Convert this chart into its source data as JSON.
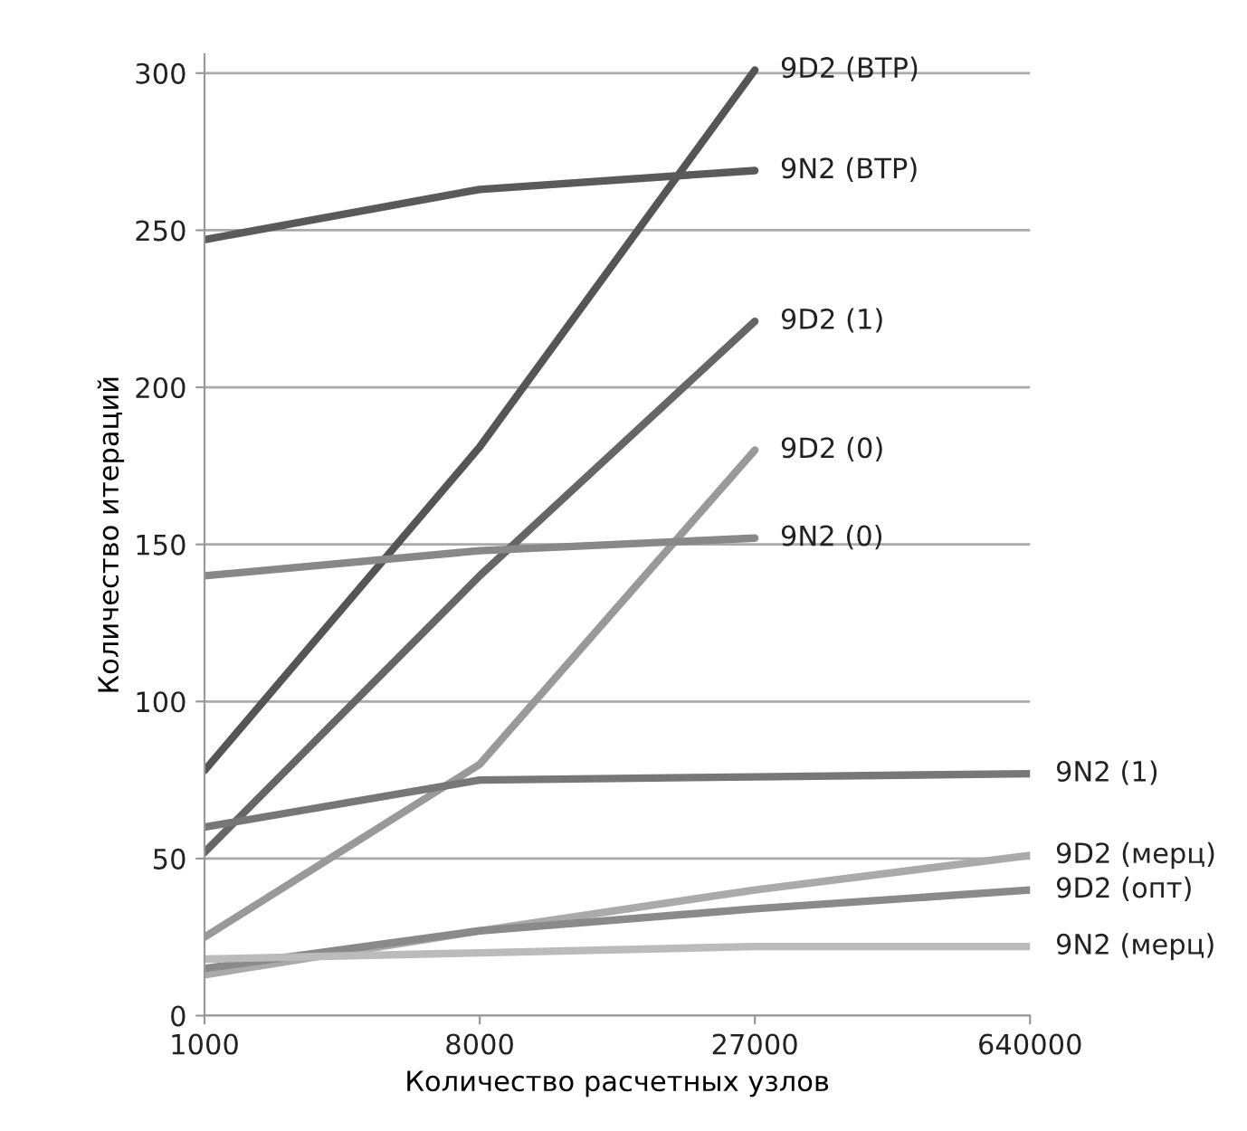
{
  "chart_data": {
    "type": "line",
    "xlabel": "Количество расчетных узлов",
    "ylabel": "Количество итераций",
    "categories": [
      "1000",
      "8000",
      "27000",
      "640000"
    ],
    "ylim": [
      0,
      306
    ],
    "yticks": [
      0,
      50,
      100,
      150,
      200,
      250,
      300
    ],
    "grid": "y",
    "legend": false,
    "marker": "none",
    "line_style": "solid",
    "series": [
      {
        "name": "9D2 (ВТР)",
        "color": "#555555",
        "values": [
          78,
          181,
          301,
          null
        ]
      },
      {
        "name": "9N2 (ВТР)",
        "color": "#5a5a5a",
        "values": [
          247,
          263,
          269,
          null
        ]
      },
      {
        "name": "9D2 (1)",
        "color": "#666666",
        "values": [
          52,
          140,
          221,
          null
        ]
      },
      {
        "name": "9D2 (0)",
        "color": "#999999",
        "values": [
          25,
          80,
          180,
          null
        ]
      },
      {
        "name": "9N2 (0)",
        "color": "#888888",
        "values": [
          140,
          148,
          152,
          null
        ]
      },
      {
        "name": "9N2 (1)",
        "color": "#777777",
        "values": [
          60,
          75,
          76,
          77
        ]
      },
      {
        "name": "9D2 (мерц)",
        "color": "#aaaaaa",
        "values": [
          13,
          27,
          40,
          51
        ]
      },
      {
        "name": "9D2 (опт)",
        "color": "#8a8a8a",
        "values": [
          15,
          27,
          34,
          40
        ]
      },
      {
        "name": "9N2 (мерц)",
        "color": "#bbbbbb",
        "values": [
          18,
          20,
          22,
          22
        ]
      }
    ]
  }
}
